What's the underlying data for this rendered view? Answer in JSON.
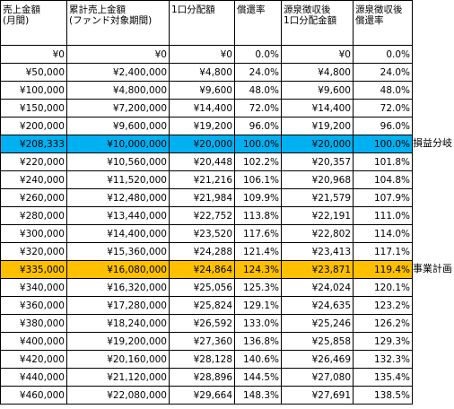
{
  "headers": [
    "売上金額\n(月間)",
    "累計売上金額\n(ファンド対象期間)",
    "1口分配額",
    "償還率",
    "源泉徴収後\n1口分配金額",
    "源泉徴収後\n償還率"
  ],
  "rows": [
    [
      "¥0",
      "¥0",
      "¥0",
      "0.0%",
      "¥0",
      "0.0%"
    ],
    [
      "¥50,000",
      "¥2,400,000",
      "¥4,800",
      "24.0%",
      "¥4,800",
      "24.0%"
    ],
    [
      "¥100,000",
      "¥4,800,000",
      "¥9,600",
      "48.0%",
      "¥9,600",
      "48.0%"
    ],
    [
      "¥150,000",
      "¥7,200,000",
      "¥14,400",
      "72.0%",
      "¥14,400",
      "72.0%"
    ],
    [
      "¥200,000",
      "¥9,600,000",
      "¥19,200",
      "96.0%",
      "¥19,200",
      "96.0%"
    ],
    [
      "¥208,333",
      "¥10,000,000",
      "¥20,000",
      "100.0%",
      "¥20,000",
      "100.0%"
    ],
    [
      "¥220,000",
      "¥10,560,000",
      "¥20,448",
      "102.2%",
      "¥20,357",
      "101.8%"
    ],
    [
      "¥240,000",
      "¥11,520,000",
      "¥21,216",
      "106.1%",
      "¥20,968",
      "104.8%"
    ],
    [
      "¥260,000",
      "¥12,480,000",
      "¥21,984",
      "109.9%",
      "¥21,579",
      "107.9%"
    ],
    [
      "¥280,000",
      "¥13,440,000",
      "¥22,752",
      "113.8%",
      "¥22,191",
      "111.0%"
    ],
    [
      "¥300,000",
      "¥14,400,000",
      "¥23,520",
      "117.6%",
      "¥22,802",
      "114.0%"
    ],
    [
      "¥320,000",
      "¥15,360,000",
      "¥24,288",
      "121.4%",
      "¥23,413",
      "117.1%"
    ],
    [
      "¥335,000",
      "¥16,080,000",
      "¥24,864",
      "124.3%",
      "¥23,871",
      "119.4%"
    ],
    [
      "¥340,000",
      "¥16,320,000",
      "¥25,056",
      "125.3%",
      "¥24,024",
      "120.1%"
    ],
    [
      "¥360,000",
      "¥17,280,000",
      "¥25,824",
      "129.1%",
      "¥24,635",
      "123.2%"
    ],
    [
      "¥380,000",
      "¥18,240,000",
      "¥26,592",
      "133.0%",
      "¥25,246",
      "126.2%"
    ],
    [
      "¥400,000",
      "¥19,200,000",
      "¥27,360",
      "136.8%",
      "¥25,858",
      "129.3%"
    ],
    [
      "¥420,000",
      "¥20,160,000",
      "¥28,128",
      "140.6%",
      "¥26,469",
      "132.3%"
    ],
    [
      "¥440,000",
      "¥21,120,000",
      "¥28,896",
      "144.5%",
      "¥27,080",
      "135.4%"
    ],
    [
      "¥460,000",
      "¥22,080,000",
      "¥29,664",
      "148.3%",
      "¥27,691",
      "138.5%"
    ]
  ],
  "highlights": [
    {
      "row": 5,
      "color": "#00b0f0",
      "label": "損益分岐"
    },
    {
      "row": 12,
      "color": "#ffc000",
      "label": "事業計画"
    }
  ]
}
